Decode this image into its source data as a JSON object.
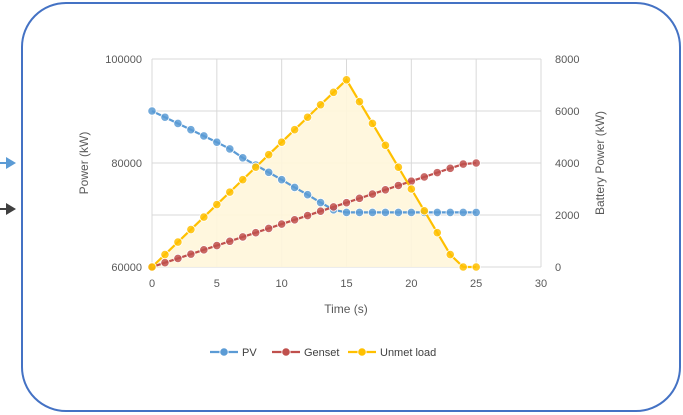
{
  "colors": {
    "frame": "#4472C4",
    "pv": "#5B9BD5",
    "genset": "#C0504D",
    "unmet": "#FFC000",
    "unmet_fill": "#FFF6DA",
    "grid": "#D9D9D9",
    "text": "#595959",
    "arrow_left_top": "#5B9BD5",
    "arrow_left_bottom": "#404040"
  },
  "chart_data": {
    "type": "line",
    "title": "",
    "xlabel": "Time (s)",
    "ylabel": "Power (kW)",
    "y2label": "Battery Power (kW)",
    "xlim": [
      0,
      30
    ],
    "ylim": [
      60000,
      100000
    ],
    "y2lim": [
      0,
      8000
    ],
    "x_ticks": [
      "0",
      "5",
      "10",
      "15",
      "20",
      "25",
      "30"
    ],
    "y_ticks": [
      "60000",
      "80000",
      "100000"
    ],
    "y2_ticks": [
      "0",
      "2000",
      "4000",
      "6000",
      "8000"
    ],
    "grid": true,
    "legend_position": "bottom",
    "x": [
      0,
      1,
      2,
      3,
      4,
      5,
      6,
      7,
      8,
      9,
      10,
      11,
      12,
      13,
      14,
      15,
      16,
      17,
      18,
      19,
      20,
      21,
      22,
      23,
      24,
      25
    ],
    "series": [
      {
        "name": "PV",
        "axis": "left",
        "color": "#5B9BD5",
        "values": [
          90000,
          88800,
          87600,
          86400,
          85200,
          84000,
          82700,
          81000,
          79600,
          78200,
          76800,
          75300,
          73900,
          72400,
          71000,
          70500,
          70500,
          70500,
          70500,
          70500,
          70500,
          70500,
          70500,
          70500,
          70500,
          70500
        ]
      },
      {
        "name": "Genset",
        "axis": "right",
        "color": "#C0504D",
        "values": [
          0,
          165,
          330,
          495,
          660,
          825,
          990,
          1155,
          1320,
          1485,
          1650,
          1815,
          1980,
          2145,
          2310,
          2475,
          2640,
          2805,
          2970,
          3135,
          3300,
          3465,
          3630,
          3795,
          3960,
          4000
        ]
      },
      {
        "name": "Unmet load",
        "axis": "right",
        "color": "#FFC000",
        "filled": true,
        "values": [
          0,
          480,
          960,
          1440,
          1920,
          2400,
          2880,
          3360,
          3840,
          4320,
          4800,
          5280,
          5760,
          6240,
          6720,
          7200,
          6360,
          5520,
          4680,
          3840,
          3000,
          2160,
          1320,
          480,
          0,
          0
        ]
      }
    ]
  }
}
